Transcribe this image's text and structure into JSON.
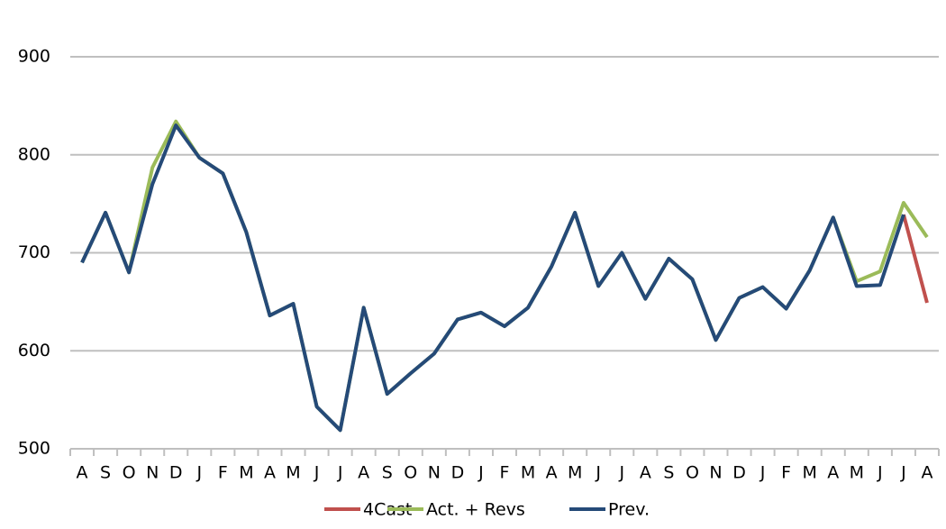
{
  "chart_data": {
    "type": "line",
    "categories": [
      "A",
      "S",
      "O",
      "N",
      "D",
      "J",
      "F",
      "M",
      "A",
      "M",
      "J",
      "J",
      "A",
      "S",
      "O",
      "N",
      "D",
      "J",
      "F",
      "M",
      "A",
      "M",
      "J",
      "J",
      "A",
      "S",
      "O",
      "N",
      "D",
      "J",
      "F",
      "M",
      "A",
      "M",
      "J",
      "J",
      "A"
    ],
    "series": [
      {
        "name": "4Cast",
        "color": "#c0504d",
        "values": [
          null,
          null,
          null,
          null,
          null,
          null,
          null,
          null,
          null,
          null,
          null,
          null,
          null,
          null,
          null,
          null,
          null,
          null,
          null,
          null,
          null,
          null,
          null,
          null,
          null,
          null,
          null,
          null,
          null,
          null,
          null,
          null,
          null,
          null,
          null,
          739,
          649
        ]
      },
      {
        "name": "Act. + Revs",
        "color": "#9bbb59",
        "values": [
          690,
          741,
          680,
          787,
          834,
          797,
          781,
          721,
          636,
          648,
          543,
          519,
          644,
          556,
          577,
          597,
          632,
          639,
          625,
          644,
          686,
          741,
          666,
          700,
          653,
          694,
          673,
          611,
          654,
          665,
          643,
          682,
          736,
          671,
          681,
          751,
          716
        ]
      },
      {
        "name": "Prev.",
        "color": "#254a78",
        "values": [
          690,
          741,
          680,
          770,
          830,
          797,
          781,
          721,
          636,
          648,
          543,
          519,
          644,
          556,
          577,
          597,
          632,
          639,
          625,
          644,
          686,
          741,
          666,
          700,
          653,
          694,
          673,
          611,
          654,
          665,
          643,
          682,
          736,
          666,
          667,
          739,
          null
        ]
      }
    ],
    "ylim": [
      500,
      900
    ],
    "yticks": [
      500,
      600,
      700,
      800,
      900
    ],
    "grid": true,
    "legend": "bottom"
  }
}
